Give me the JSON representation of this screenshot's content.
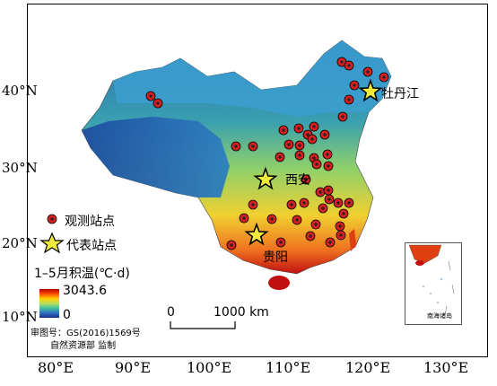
{
  "axes": {
    "lat_labels": [
      "40°N",
      "30°N",
      "20°N",
      "10°N"
    ],
    "lon_labels": [
      "80°E",
      "90°E",
      "100°E",
      "110°E",
      "120°E",
      "130°E"
    ]
  },
  "legend": {
    "obs_station": "观测站点",
    "rep_station": "代表站点",
    "colorbar_title": "1–5月积温(℃·d)",
    "colorbar_max": "3043.6",
    "colorbar_min": "0"
  },
  "scale_bar": {
    "zero": "0",
    "distance": "1000 km"
  },
  "credit": {
    "line1": "审图号：GS(2016)1569号",
    "line2": "自然资源部 监制"
  },
  "inset": {
    "label": "南海诸岛"
  },
  "rep_cities": [
    {
      "name": "牡丹江"
    },
    {
      "name": "西安"
    },
    {
      "name": "贵阳"
    }
  ],
  "colors": {
    "obs_fill": "#d42020",
    "rep_star": "#f2ea3a",
    "frame": "#000000"
  }
}
